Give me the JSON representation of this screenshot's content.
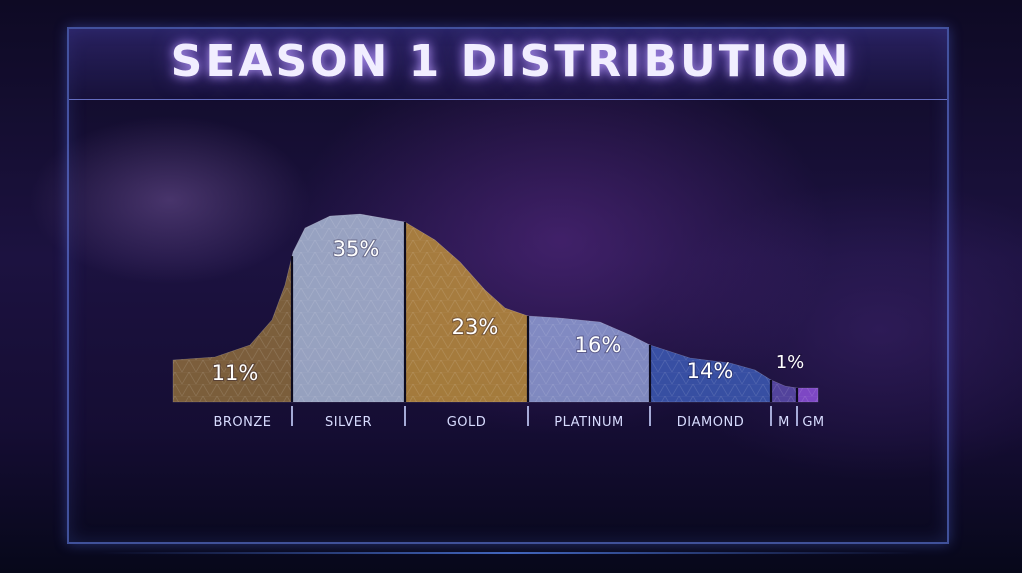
{
  "title": "SEASON 1 DISTRIBUTION",
  "chart_data": {
    "type": "area",
    "title": "SEASON 1 DISTRIBUTION",
    "categories": [
      "BRONZE",
      "SILVER",
      "GOLD",
      "PLATINUM",
      "DIAMOND",
      "M",
      "GM"
    ],
    "values": [
      11,
      35,
      23,
      16,
      14,
      1,
      null
    ],
    "value_labels": [
      "11%",
      "35%",
      "23%",
      "16%",
      "14%",
      "1%",
      ""
    ],
    "colors": {
      "BRONZE": "#8a6a3c",
      "SILVER": "#a9b6d3",
      "GOLD": "#b78a3c",
      "PLATINUM": "#8d9ad2",
      "DIAMOND": "#3b58b0",
      "M": "#5a4aa8",
      "GM": "#8a4fd6"
    },
    "grid": false,
    "legend": "none"
  }
}
